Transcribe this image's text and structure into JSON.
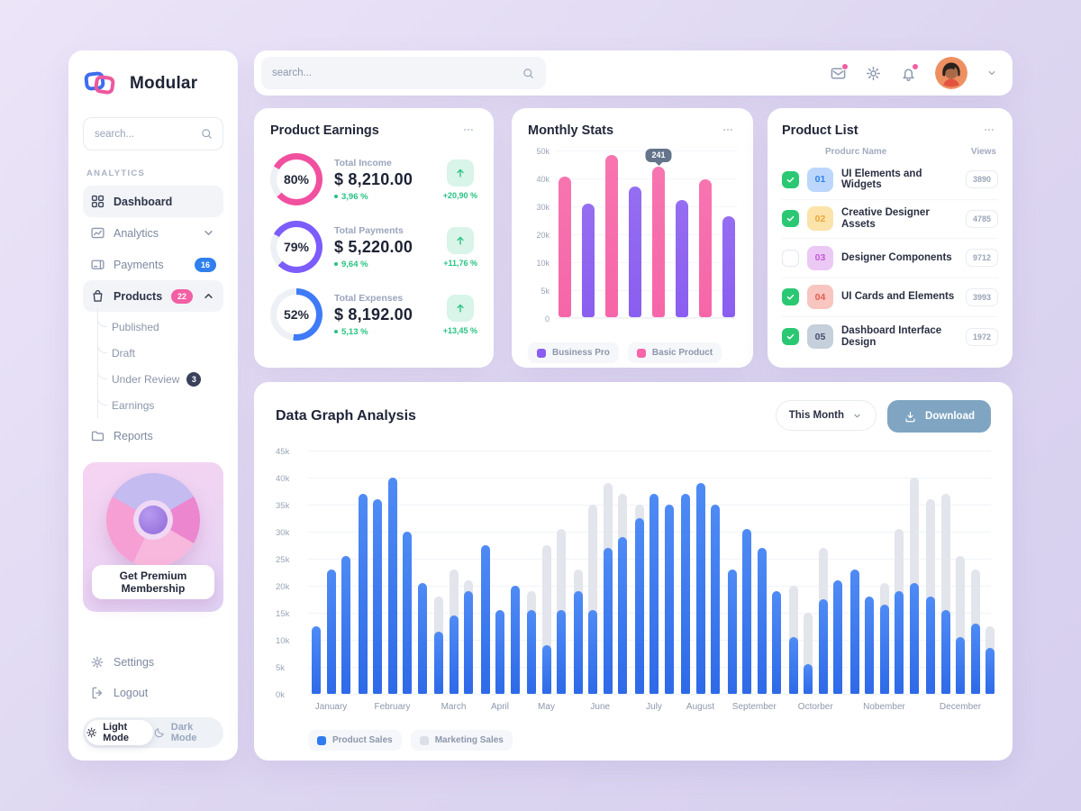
{
  "app": {
    "name": "Modular"
  },
  "topbar": {
    "search_placeholder": "search..."
  },
  "sidebar": {
    "search_placeholder": "search...",
    "section_label": "ANALYTICS",
    "items": [
      {
        "id": "dashboard",
        "label": "Dashboard",
        "icon": "grid",
        "active": true
      },
      {
        "id": "analytics",
        "label": "Analytics",
        "icon": "chart",
        "chevron": "down"
      },
      {
        "id": "payments",
        "label": "Payments",
        "icon": "card",
        "badge": "16",
        "badge_color": "#2f80ed"
      },
      {
        "id": "products",
        "label": "Products",
        "icon": "bag",
        "badge": "22",
        "badge_color": "#f25fa4",
        "chevron": "up",
        "active": true,
        "children": [
          {
            "label": "Published"
          },
          {
            "label": "Draft"
          },
          {
            "label": "Under Review",
            "badge": "3",
            "badge_color": "#39415a"
          },
          {
            "label": "Earnings"
          }
        ]
      },
      {
        "id": "reports",
        "label": "Reports",
        "icon": "folder"
      }
    ],
    "premium": {
      "button_label": "Get Premium Membership"
    },
    "footer_items": [
      {
        "id": "settings",
        "label": "Settings"
      },
      {
        "id": "logout",
        "label": "Logout"
      }
    ],
    "mode_toggle": {
      "light": "Light Mode",
      "dark": "Dark Mode",
      "active": "light"
    }
  },
  "earnings_card": {
    "title": "Product Earnings",
    "rows": [
      {
        "percent": "80%",
        "pct": 80,
        "color": "#f0509f",
        "from": 300,
        "label": "Total Income",
        "value": "$ 8,210.00",
        "change": "3,96 %",
        "total_change": "+20,90 %"
      },
      {
        "percent": "79%",
        "pct": 79,
        "color": "#7c5cfa",
        "from": 300,
        "label": "Total Payments",
        "value": "$ 5,220.00",
        "change": "9,64 %",
        "total_change": "+11,76 %"
      },
      {
        "percent": "52%",
        "pct": 52,
        "color": "#3f7bf6",
        "from": 0,
        "label": "Total Expenses",
        "value": "$ 8,192.00",
        "change": "5,13 %",
        "total_change": "+13,45 %"
      }
    ]
  },
  "monthly_card": {
    "title": "Monthly Stats",
    "tooltip": "241",
    "y_ticks": [
      "50k",
      "40k",
      "30k",
      "20k",
      "10k",
      "5k",
      "0"
    ],
    "y_max": 50,
    "bars": [
      {
        "value": 42,
        "series": "Basic Product"
      },
      {
        "value": 34,
        "series": "Business Pro"
      },
      {
        "value": 48.5,
        "series": "Basic Product"
      },
      {
        "value": 39,
        "series": "Business Pro"
      },
      {
        "value": 45,
        "series": "Basic Product",
        "tooltip": true
      },
      {
        "value": 35,
        "series": "Business Pro"
      },
      {
        "value": 41,
        "series": "Basic Product"
      },
      {
        "value": 30,
        "series": "Business Pro"
      }
    ],
    "legend": [
      {
        "label": "Business Pro",
        "color": "#8a5ef0"
      },
      {
        "label": "Basic Product",
        "color": "#f666a8"
      }
    ]
  },
  "product_list_card": {
    "title": "Product List",
    "columns": {
      "name": "Produrc Name",
      "views": "Views"
    },
    "rows": [
      {
        "checked": true,
        "num": "01",
        "num_bg": "#bcd7fb",
        "num_color": "#2f80ed",
        "name": "UI Elements and Widgets",
        "views": "3890"
      },
      {
        "checked": true,
        "num": "02",
        "num_bg": "#fbe3a9",
        "num_color": "#eda73f",
        "name": "Creative Designer Assets",
        "views": "4785"
      },
      {
        "checked": false,
        "num": "03",
        "num_bg": "#ecc8f5",
        "num_color": "#c05cd8",
        "name": "Designer Components",
        "views": "9712"
      },
      {
        "checked": true,
        "num": "04",
        "num_bg": "#f8c5c0",
        "num_color": "#e25c51",
        "name": "UI Cards and Elements",
        "views": "3993"
      },
      {
        "checked": true,
        "num": "05",
        "num_bg": "#c6cfdc",
        "num_color": "#46506a",
        "name": "Dashboard Interface Design",
        "views": "1972"
      }
    ]
  },
  "graph_card": {
    "title": "Data Graph Analysis",
    "period_label": "This Month",
    "download_label": "Download",
    "y_ticks": [
      "45k",
      "40k",
      "35k",
      "30k",
      "25k",
      "20k",
      "15k",
      "10k",
      "5k",
      "0k"
    ],
    "y_max": 45,
    "months": [
      {
        "label": "January",
        "bars": [
          {
            "p": 12.5
          },
          {
            "p": 23
          },
          {
            "p": 25.5
          }
        ]
      },
      {
        "label": "February",
        "bars": [
          {
            "p": 37
          },
          {
            "p": 36
          },
          {
            "p": 40
          },
          {
            "p": 30
          },
          {
            "p": 20.5
          }
        ]
      },
      {
        "label": "March",
        "bars": [
          {
            "p": 11.5,
            "m": 18
          },
          {
            "p": 14.5,
            "m": 23
          },
          {
            "p": 19,
            "m": 21
          }
        ]
      },
      {
        "label": "April",
        "bars": [
          {
            "p": 27.5
          },
          {
            "p": 15.5
          },
          {
            "p": 20
          }
        ]
      },
      {
        "label": "May",
        "bars": [
          {
            "p": 15.5,
            "m": 19
          },
          {
            "p": 9,
            "m": 27.5
          },
          {
            "p": 15.5,
            "m": 30.5
          }
        ]
      },
      {
        "label": "June",
        "bars": [
          {
            "p": 19,
            "m": 23
          },
          {
            "p": 15.5,
            "m": 35
          },
          {
            "p": 27,
            "m": 39
          },
          {
            "p": 29,
            "m": 37
          }
        ]
      },
      {
        "label": "July",
        "bars": [
          {
            "p": 32.5,
            "m": 35
          },
          {
            "p": 37
          },
          {
            "p": 35
          }
        ]
      },
      {
        "label": "August",
        "bars": [
          {
            "p": 37
          },
          {
            "p": 39
          },
          {
            "p": 35
          }
        ]
      },
      {
        "label": "September",
        "bars": [
          {
            "p": 23
          },
          {
            "p": 30.5
          },
          {
            "p": 27
          },
          {
            "p": 19
          }
        ]
      },
      {
        "label": "Octorber",
        "bars": [
          {
            "p": 10.5,
            "m": 20
          },
          {
            "p": 5.5,
            "m": 15
          },
          {
            "p": 17.5,
            "m": 27
          },
          {
            "p": 21
          }
        ]
      },
      {
        "label": "Nobember",
        "bars": [
          {
            "p": 23
          },
          {
            "p": 18
          },
          {
            "p": 16.5,
            "m": 20.5
          },
          {
            "p": 19,
            "m": 30.5
          },
          {
            "p": 20.5,
            "m": 40
          }
        ]
      },
      {
        "label": "December",
        "bars": [
          {
            "p": 18,
            "m": 36
          },
          {
            "p": 15.5,
            "m": 37
          },
          {
            "p": 10.5,
            "m": 25.5
          },
          {
            "p": 13,
            "m": 23
          },
          {
            "p": 8.5,
            "m": 12.5
          }
        ]
      }
    ],
    "legend": [
      {
        "label": "Product Sales",
        "color": "#2f7bf0"
      },
      {
        "label": "Marketing Sales",
        "color": "#dcdfe6"
      }
    ]
  }
}
